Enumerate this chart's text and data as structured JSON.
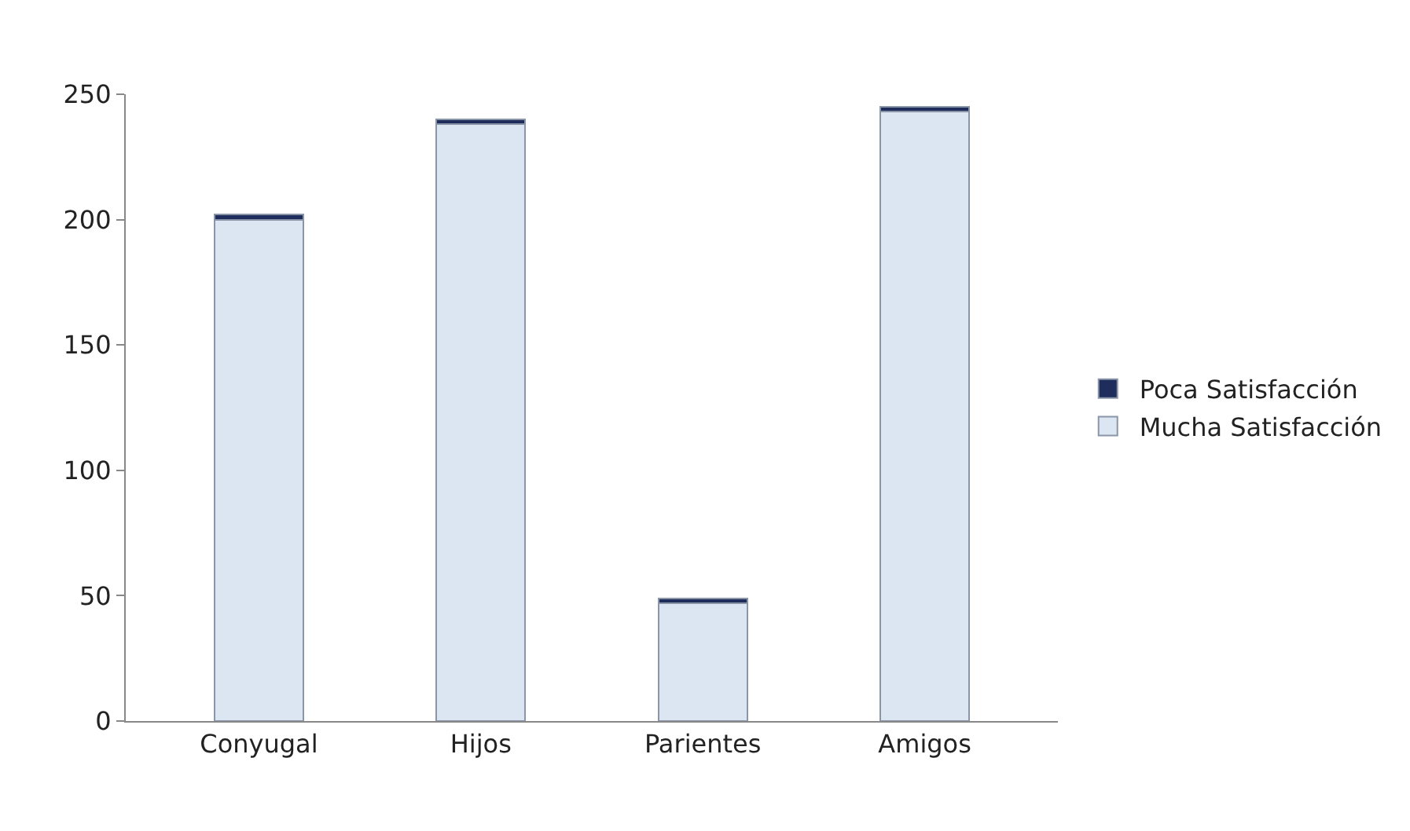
{
  "chart_data": {
    "type": "bar",
    "stacked": true,
    "categories": [
      "Conyugal",
      "Hijos",
      "Parientes",
      "Amigos"
    ],
    "series": [
      {
        "name": "Mucha Satisfacción",
        "color": "#dce6f2",
        "values": [
          200,
          238,
          47,
          243
        ]
      },
      {
        "name": "Poca Satisfacción",
        "color": "#1f2d5c",
        "values": [
          2,
          2,
          2,
          2
        ]
      }
    ],
    "ylim": [
      0,
      250
    ],
    "yticks": [
      0,
      50,
      100,
      150,
      200,
      250
    ],
    "grid": false,
    "legend": "right"
  }
}
